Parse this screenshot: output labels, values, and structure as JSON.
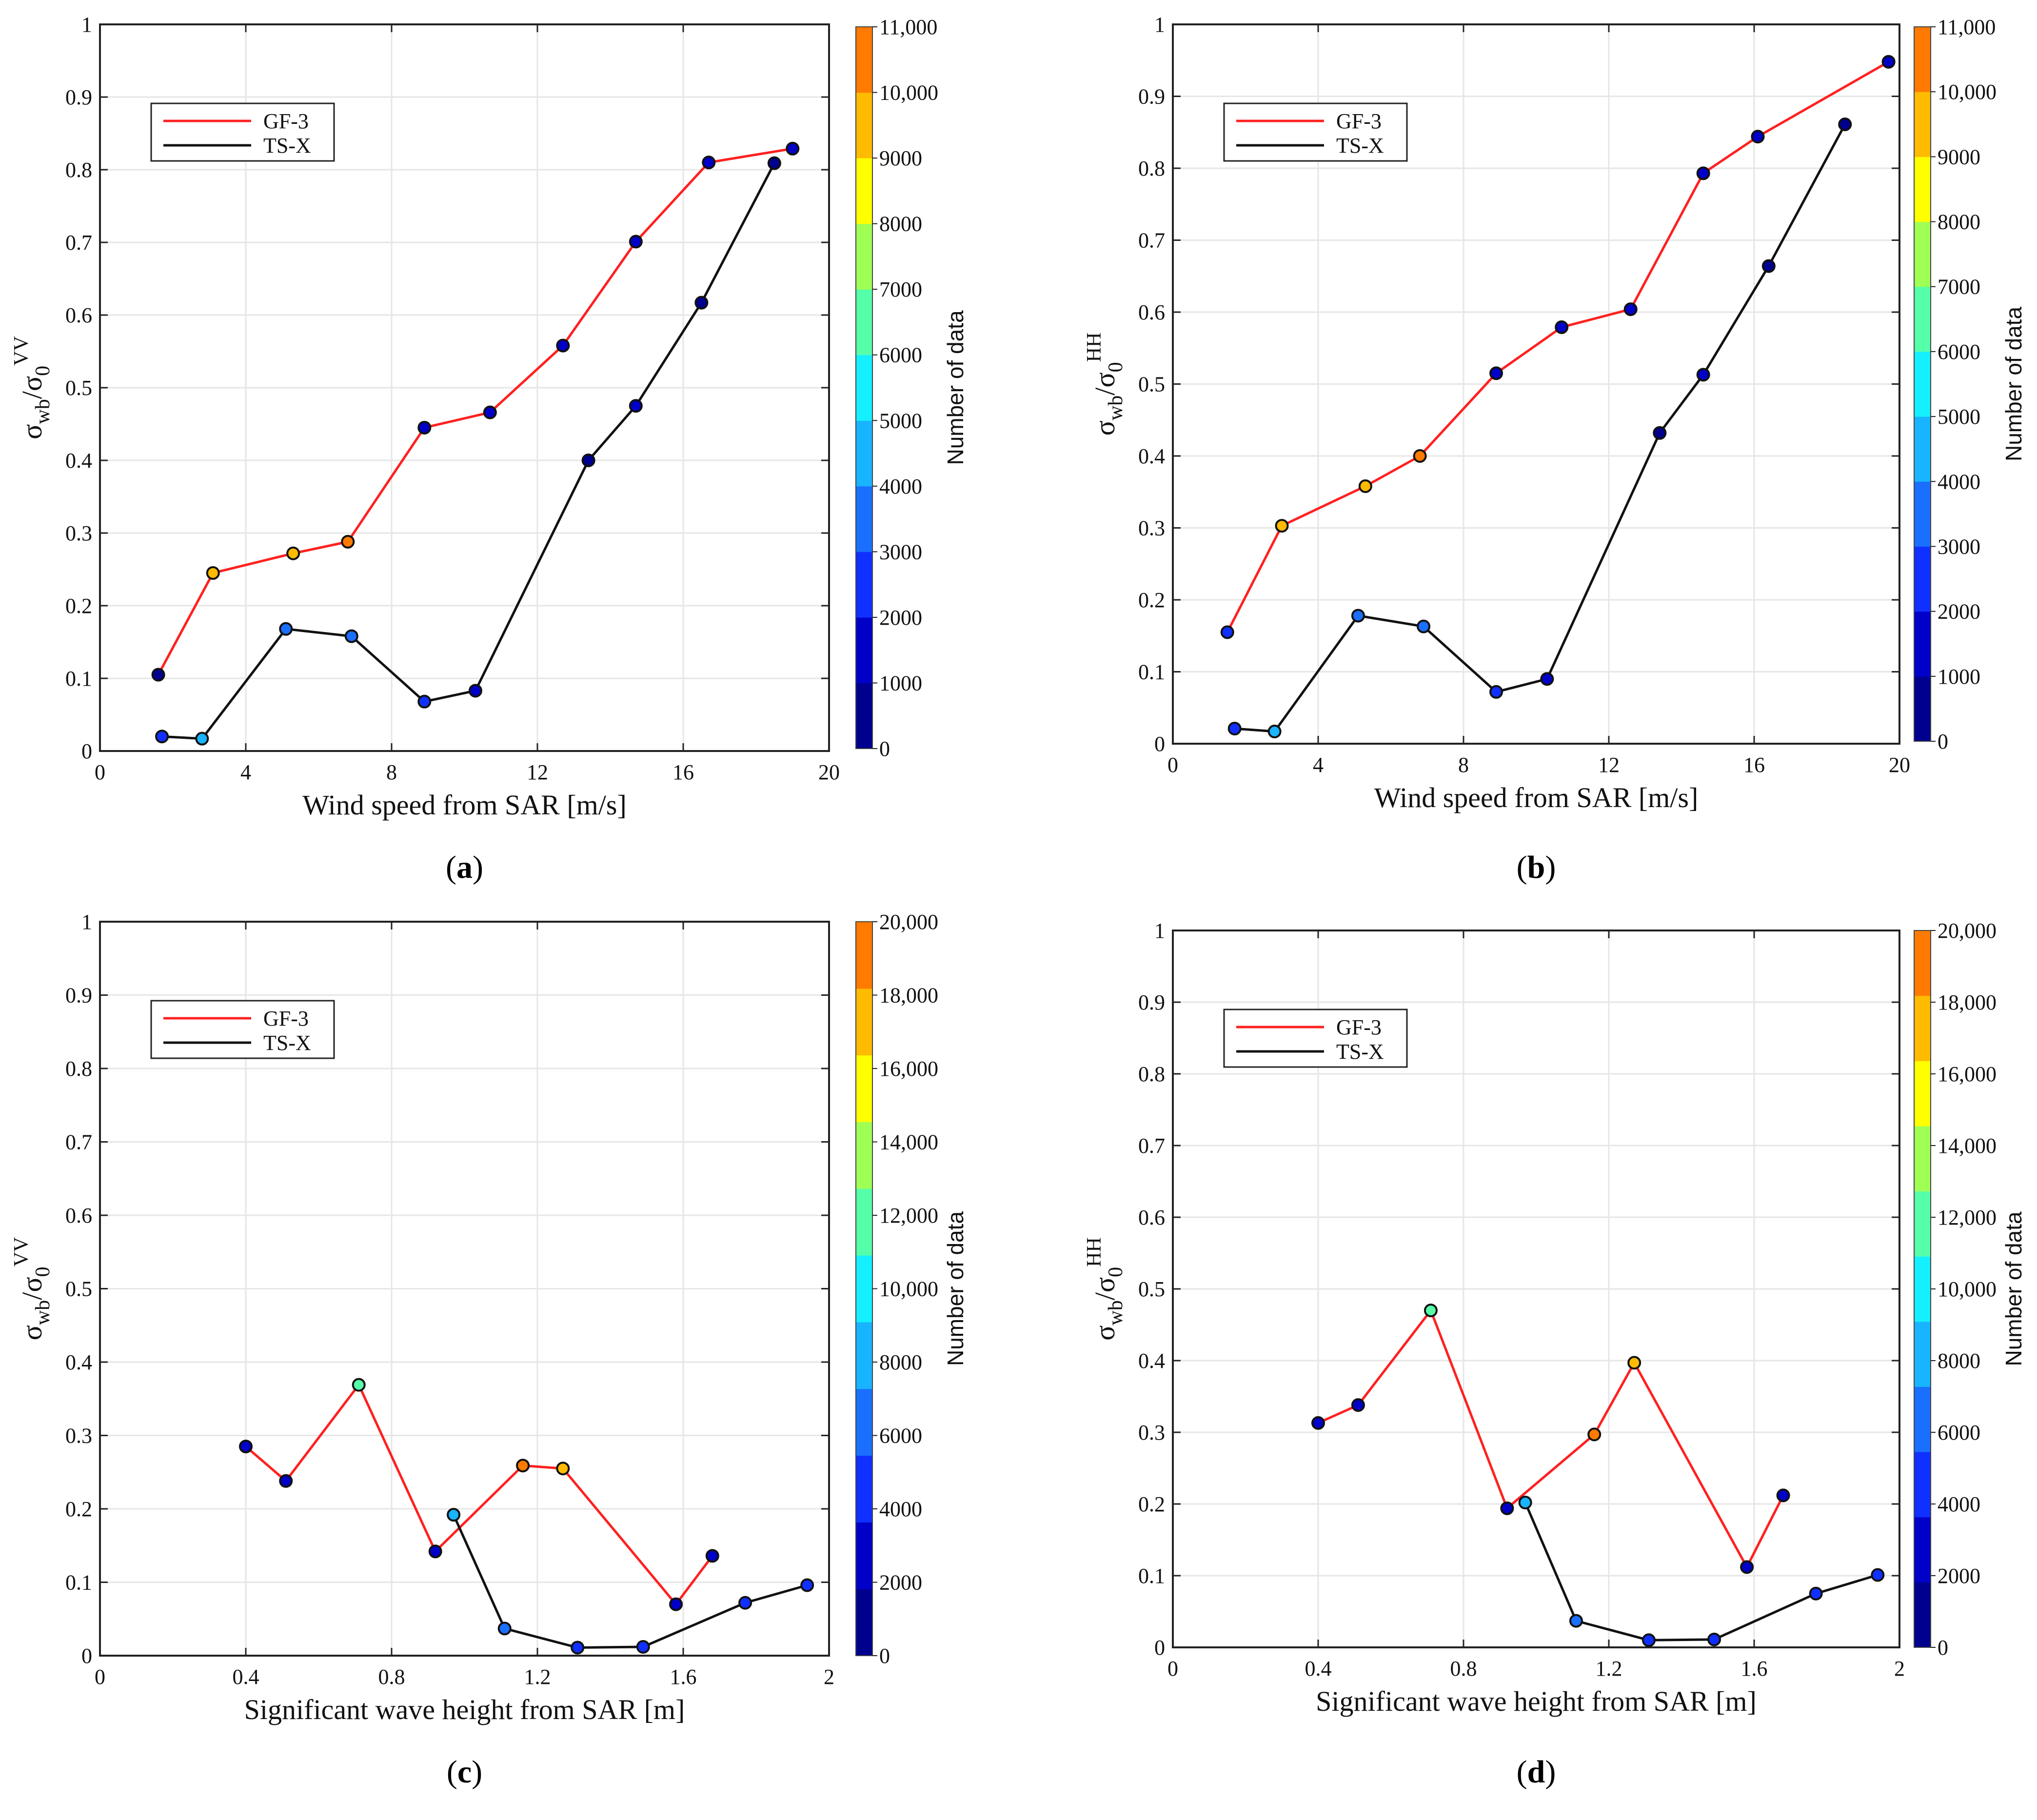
{
  "colors": {
    "gf3": "#ff2020",
    "tsx": "#111111",
    "grid": "#e6e6e6",
    "colormap": [
      "#00008f",
      "#0000c8",
      "#1030ff",
      "#1a6fff",
      "#18b4ff",
      "#14f0ff",
      "#55ffaa",
      "#a0ff55",
      "#ffff00",
      "#ffbb00",
      "#ff7a00"
    ]
  },
  "chart_data": [
    {
      "panel_label": "(a)",
      "panel_letter": "a",
      "type": "line",
      "xlabel": "Wind speed from SAR [m/s]",
      "ylabel": "σwb/σ0VV",
      "ylabel_sub": "wb",
      "ylabel_sub2": "0",
      "ylabel_sup": "VV",
      "xlim": [
        0,
        20
      ],
      "ylim": [
        0,
        1
      ],
      "xticks": [
        0,
        4,
        8,
        12,
        16,
        20
      ],
      "xtick_labels": [
        "0",
        "4",
        "8",
        "12",
        "16",
        "20"
      ],
      "yticks": [
        0,
        0.1,
        0.2,
        0.3,
        0.4,
        0.5,
        0.6,
        0.7,
        0.8,
        0.9,
        1
      ],
      "ytick_labels": [
        "0",
        "0.1",
        "0.2",
        "0.3",
        "0.4",
        "0.5",
        "0.6",
        "0.7",
        "0.8",
        "0.9",
        "1"
      ],
      "colorbar": {
        "label": "Number of data",
        "max": 11000,
        "ticks": [
          0,
          1000,
          2000,
          3000,
          4000,
          5000,
          6000,
          7000,
          8000,
          9000,
          10000,
          11000
        ],
        "tick_labels": [
          "0",
          "1000",
          "2000",
          "3000",
          "4000",
          "5000",
          "6000",
          "7000",
          "8000",
          "9000",
          "10,000",
          "11,000"
        ]
      },
      "legend": [
        "GF-3",
        "TS-X"
      ],
      "series": [
        {
          "name": "GF-3",
          "x": [
            1.6,
            3.1,
            5.3,
            6.8,
            8.9,
            10.7,
            12.7,
            14.7,
            16.7,
            19.0
          ],
          "y": [
            0.105,
            0.245,
            0.272,
            0.288,
            0.445,
            0.466,
            0.558,
            0.701,
            0.81,
            0.829
          ],
          "counts": [
            800,
            9500,
            9000,
            10300,
            1000,
            1000,
            1000,
            1100,
            1000,
            1000
          ]
        },
        {
          "name": "TS-X",
          "x": [
            1.7,
            2.8,
            5.1,
            6.9,
            8.9,
            10.3,
            13.4,
            14.7,
            16.5,
            18.5
          ],
          "y": [
            0.02,
            0.017,
            0.168,
            0.158,
            0.068,
            0.083,
            0.4,
            0.475,
            0.617,
            0.809
          ],
          "counts": [
            2300,
            4500,
            3300,
            3000,
            2800,
            1600,
            700,
            1000,
            700,
            700
          ]
        }
      ]
    },
    {
      "panel_label": "(b)",
      "panel_letter": "b",
      "type": "line",
      "xlabel": "Wind speed from SAR [m/s]",
      "ylabel": "σwb/σ0HH",
      "ylabel_sub": "wb",
      "ylabel_sub2": "0",
      "ylabel_sup": "HH",
      "xlim": [
        0,
        20
      ],
      "ylim": [
        0,
        1
      ],
      "xticks": [
        0,
        4,
        8,
        12,
        16,
        20
      ],
      "xtick_labels": [
        "0",
        "4",
        "8",
        "12",
        "16",
        "20"
      ],
      "yticks": [
        0,
        0.1,
        0.2,
        0.3,
        0.4,
        0.5,
        0.6,
        0.7,
        0.8,
        0.9,
        1
      ],
      "ytick_labels": [
        "0",
        "0.1",
        "0.2",
        "0.3",
        "0.4",
        "0.5",
        "0.6",
        "0.7",
        "0.8",
        "0.9",
        "1"
      ],
      "colorbar": {
        "label": "Number of data",
        "max": 11000,
        "ticks": [
          0,
          1000,
          2000,
          3000,
          4000,
          5000,
          6000,
          7000,
          8000,
          9000,
          10000,
          11000
        ],
        "tick_labels": [
          "0",
          "1000",
          "2000",
          "3000",
          "4000",
          "5000",
          "6000",
          "7000",
          "8000",
          "9000",
          "10,000",
          "11,000"
        ]
      },
      "legend": [
        "GF-3",
        "TS-X"
      ],
      "series": [
        {
          "name": "GF-3",
          "x": [
            1.5,
            3.0,
            5.3,
            6.8,
            8.9,
            10.7,
            12.6,
            14.6,
            16.1,
            19.7
          ],
          "y": [
            0.155,
            0.303,
            0.358,
            0.4,
            0.515,
            0.579,
            0.604,
            0.793,
            0.844,
            0.948
          ],
          "counts": [
            2000,
            9300,
            9200,
            10300,
            1000,
            1000,
            1000,
            1100,
            1000,
            1000
          ]
        },
        {
          "name": "TS-X",
          "x": [
            1.7,
            2.8,
            5.1,
            6.9,
            8.9,
            10.3,
            13.4,
            14.6,
            16.4,
            18.5
          ],
          "y": [
            0.021,
            0.017,
            0.178,
            0.163,
            0.072,
            0.09,
            0.432,
            0.513,
            0.664,
            0.861
          ],
          "counts": [
            2300,
            4500,
            3300,
            3000,
            2800,
            1600,
            700,
            1000,
            700,
            700
          ]
        }
      ]
    },
    {
      "panel_label": "(c)",
      "panel_letter": "c",
      "type": "line",
      "xlabel": "Significant wave height from SAR [m]",
      "ylabel": "σwb/σ0VV",
      "ylabel_sub": "wb",
      "ylabel_sub2": "0",
      "ylabel_sup": "VV",
      "xlim": [
        0,
        2
      ],
      "ylim": [
        0,
        1
      ],
      "xticks": [
        0,
        0.4,
        0.8,
        1.2,
        1.6,
        2
      ],
      "xtick_labels": [
        "0",
        "0.4",
        "0.8",
        "1.2",
        "1.6",
        "2"
      ],
      "yticks": [
        0,
        0.1,
        0.2,
        0.3,
        0.4,
        0.5,
        0.6,
        0.7,
        0.8,
        0.9,
        1
      ],
      "ytick_labels": [
        "0",
        "0.1",
        "0.2",
        "0.3",
        "0.4",
        "0.5",
        "0.6",
        "0.7",
        "0.8",
        "0.9",
        "1"
      ],
      "colorbar": {
        "label": "Number of data",
        "max": 20000,
        "ticks": [
          0,
          2000,
          4000,
          6000,
          8000,
          10000,
          12000,
          14000,
          16000,
          18000,
          20000
        ],
        "tick_labels": [
          "0",
          "2000",
          "4000",
          "6000",
          "8000",
          "10,000",
          "12,000",
          "14,000",
          "16,000",
          "18,000",
          "20,000"
        ]
      },
      "legend": [
        "GF-3",
        "TS-X"
      ],
      "series": [
        {
          "name": "GF-3",
          "x": [
            0.4,
            0.51,
            0.71,
            0.92,
            1.16,
            1.27,
            1.58,
            1.68
          ],
          "y": [
            0.285,
            0.238,
            0.369,
            0.142,
            0.259,
            0.255,
            0.07,
            0.136
          ],
          "counts": [
            2500,
            2500,
            11000,
            2500,
            18500,
            18000,
            2500,
            2500
          ]
        },
        {
          "name": "TS-X",
          "x": [
            0.97,
            1.11,
            1.31,
            1.49,
            1.77,
            1.94
          ],
          "y": [
            0.192,
            0.037,
            0.011,
            0.012,
            0.072,
            0.096
          ],
          "counts": [
            7500,
            7000,
            5000,
            4000,
            4500,
            4000
          ]
        }
      ]
    },
    {
      "panel_label": "(d)",
      "panel_letter": "d",
      "type": "line",
      "xlabel": "Significant wave height from SAR [m]",
      "ylabel": "σwb/σ0HH",
      "ylabel_sub": "wb",
      "ylabel_sub2": "0",
      "ylabel_sup": "HH",
      "xlim": [
        0,
        2
      ],
      "ylim": [
        0,
        1
      ],
      "xticks": [
        0,
        0.4,
        0.8,
        1.2,
        1.6,
        2
      ],
      "xtick_labels": [
        "0",
        "0.4",
        "0.8",
        "1.2",
        "1.6",
        "2"
      ],
      "yticks": [
        0,
        0.1,
        0.2,
        0.3,
        0.4,
        0.5,
        0.6,
        0.7,
        0.8,
        0.9,
        1
      ],
      "ytick_labels": [
        "0",
        "0.1",
        "0.2",
        "0.3",
        "0.4",
        "0.5",
        "0.6",
        "0.7",
        "0.8",
        "0.9",
        "1"
      ],
      "colorbar": {
        "label": "Number of data",
        "max": 20000,
        "ticks": [
          0,
          2000,
          4000,
          6000,
          8000,
          10000,
          12000,
          14000,
          16000,
          18000,
          20000
        ],
        "tick_labels": [
          "0",
          "2000",
          "4000",
          "6000",
          "8000",
          "10,000",
          "12,000",
          "14,000",
          "16,000",
          "18,000",
          "20,000"
        ]
      },
      "legend": [
        "GF-3",
        "TS-X"
      ],
      "series": [
        {
          "name": "GF-3",
          "x": [
            0.4,
            0.51,
            0.71,
            0.92,
            1.16,
            1.27,
            1.58,
            1.68
          ],
          "y": [
            0.313,
            0.338,
            0.47,
            0.194,
            0.297,
            0.397,
            0.112,
            0.212
          ],
          "counts": [
            2500,
            2500,
            11000,
            2500,
            18500,
            18000,
            2500,
            2500
          ]
        },
        {
          "name": "TS-X",
          "x": [
            0.97,
            1.11,
            1.31,
            1.49,
            1.77,
            1.94
          ],
          "y": [
            0.202,
            0.037,
            0.01,
            0.011,
            0.075,
            0.101
          ],
          "counts": [
            7500,
            7000,
            5000,
            4000,
            4500,
            4000
          ]
        }
      ]
    }
  ]
}
